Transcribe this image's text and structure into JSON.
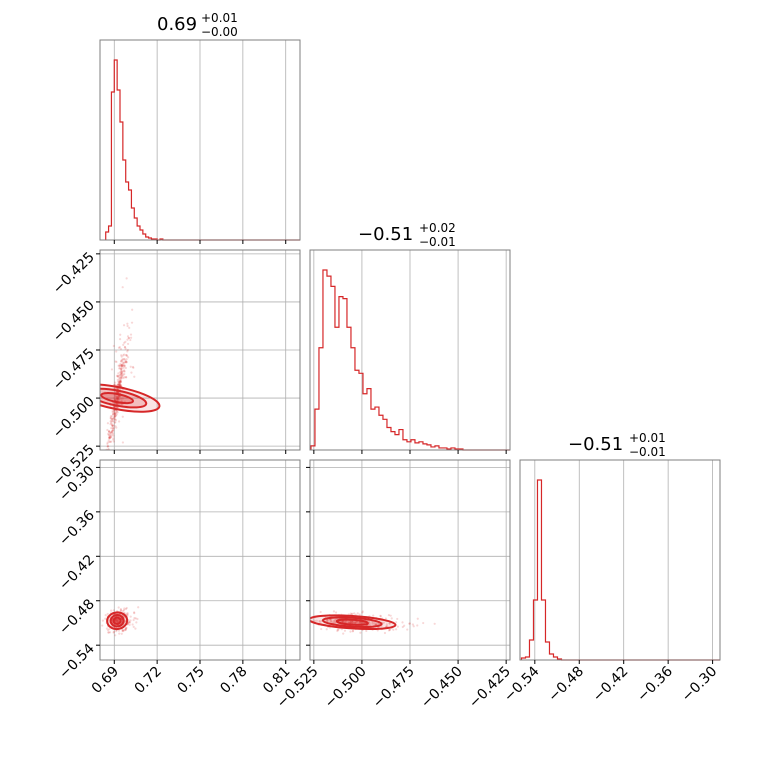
{
  "chart_data": {
    "type": "corner",
    "series_color": "#d62728",
    "grid": true,
    "parameters": [
      {
        "range": [
          0.68,
          0.82
        ],
        "ticks": [
          "0.69",
          "0.72",
          "0.75",
          "0.78",
          "0.81"
        ],
        "tick_values": [
          0.69,
          0.72,
          0.75,
          0.78,
          0.81
        ]
      },
      {
        "range": [
          -0.527,
          -0.423
        ],
        "ticks": [
          "−0.525",
          "−0.500",
          "−0.475",
          "−0.450",
          "−0.425"
        ],
        "tick_values": [
          -0.525,
          -0.5,
          -0.475,
          -0.45,
          -0.425
        ]
      },
      {
        "range": [
          -0.56,
          -0.29
        ],
        "ticks": [
          "−0.54",
          "−0.48",
          "−0.42",
          "−0.36",
          "−0.30"
        ],
        "tick_values": [
          -0.54,
          -0.48,
          -0.42,
          -0.36,
          -0.3
        ]
      }
    ],
    "titles": [
      {
        "main": "0.69",
        "plus": "+0.01",
        "minus": "−0.00"
      },
      {
        "main": "−0.51",
        "plus": "+0.02",
        "minus": "−0.01"
      },
      {
        "main": "−0.51",
        "plus": "+0.01",
        "minus": "−0.01"
      }
    ],
    "histograms": [
      {
        "bin_start": 0.684,
        "bin_width": 0.002,
        "counts": [
          8,
          14,
          148,
          180,
          150,
          118,
          80,
          58,
          50,
          32,
          22,
          14,
          10,
          6,
          3,
          2,
          1,
          1,
          0,
          1,
          0,
          0,
          0,
          0,
          0,
          0,
          0,
          0,
          0,
          0,
          0,
          0,
          0,
          0,
          0,
          0,
          0,
          0,
          0,
          0,
          0,
          0,
          0,
          0,
          0,
          0,
          0,
          0,
          0,
          0,
          0,
          0,
          0,
          0,
          0,
          0,
          0,
          0,
          0,
          0,
          0,
          0,
          0,
          0,
          0,
          0,
          0,
          0
        ]
      },
      {
        "bin_start": -0.5265,
        "bin_width": 0.00208,
        "counts": [
          4,
          40,
          100,
          176,
          170,
          160,
          120,
          150,
          148,
          120,
          100,
          78,
          75,
          55,
          60,
          40,
          42,
          34,
          30,
          22,
          18,
          15,
          20,
          10,
          8,
          10,
          7,
          8,
          6,
          5,
          3,
          4,
          2,
          2,
          1,
          2,
          1,
          1,
          0,
          0,
          0,
          0,
          0,
          0,
          0,
          0,
          0,
          0,
          0,
          0
        ]
      },
      {
        "bin_start": -0.558,
        "bin_width": 0.0054,
        "counts": [
          2,
          3,
          20,
          60,
          180,
          60,
          18,
          6,
          3,
          1,
          0,
          0,
          0,
          0,
          0,
          0,
          0,
          0,
          0,
          0,
          0,
          0,
          0,
          0,
          0,
          0,
          0,
          0,
          0,
          0,
          0,
          0,
          0,
          0,
          0,
          0,
          0,
          0,
          0,
          0,
          0,
          0,
          0,
          0,
          0,
          0,
          0,
          0,
          0,
          0
        ]
      }
    ]
  }
}
